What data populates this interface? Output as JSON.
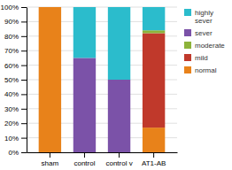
{
  "chart_data": {
    "type": "bar",
    "stacked": true,
    "categories": [
      "sham",
      "control",
      "control v",
      "AT1-AB"
    ],
    "series": [
      {
        "name": "normal",
        "color": "#E8821A",
        "values": [
          100,
          0,
          0,
          17
        ]
      },
      {
        "name": "mild",
        "color": "#C0392B",
        "values": [
          0,
          0,
          0,
          65
        ]
      },
      {
        "name": "moderate",
        "color": "#8DB33A",
        "values": [
          0,
          0,
          0,
          2
        ]
      },
      {
        "name": "sever",
        "color": "#7B52A8",
        "values": [
          0,
          65,
          50,
          0
        ]
      },
      {
        "name": "highly\nsever",
        "color": "#2BBCCC",
        "values": [
          0,
          35,
          50,
          16
        ]
      }
    ],
    "ylim": [
      0,
      100
    ],
    "yticks": [
      {
        "value": 0,
        "label": "0%"
      },
      {
        "value": 10,
        "label": "10%"
      },
      {
        "value": 20,
        "label": "20%"
      },
      {
        "value": 30,
        "label": "30%"
      },
      {
        "value": 40,
        "label": "40%"
      },
      {
        "value": 50,
        "label": "50%"
      },
      {
        "value": 60,
        "label": "60%"
      },
      {
        "value": 70,
        "label": "70%"
      },
      {
        "value": 80,
        "label": "80%"
      },
      {
        "value": 90,
        "label": "90%"
      },
      {
        "value": 100,
        "label": "100%"
      }
    ],
    "grid": true,
    "legend": "right"
  }
}
